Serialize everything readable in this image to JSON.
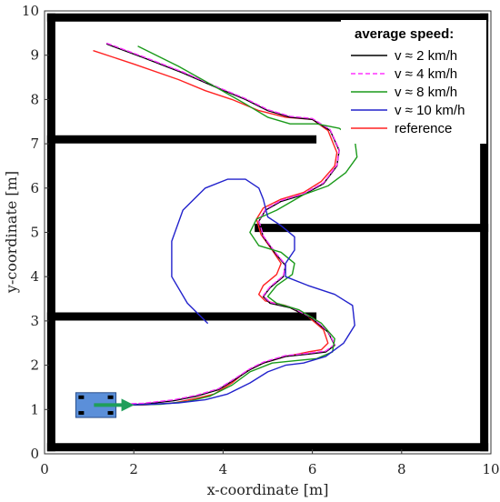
{
  "chart_data": {
    "type": "line",
    "title": "",
    "xlabel": "x-coordinate [m]",
    "ylabel": "y-coordinate [m]",
    "xlim": [
      0,
      10
    ],
    "ylim": [
      0,
      10
    ],
    "x_ticks": [
      "0",
      "2",
      "4",
      "6",
      "8",
      "10"
    ],
    "y_ticks": [
      "0",
      "1",
      "2",
      "3",
      "4",
      "5",
      "6",
      "7",
      "8",
      "9",
      "10"
    ],
    "grid": false,
    "legend": {
      "title": "average speed:",
      "position": "top-right",
      "entries": [
        {
          "label": "v ≈ 2 km/h",
          "color": "#000000",
          "dash": "solid"
        },
        {
          "label": "v ≈ 4 km/h",
          "color": "#ff33ff",
          "dash": "dashed"
        },
        {
          "label": "v ≈ 8 km/h",
          "color": "#1a9a1a",
          "dash": "solid"
        },
        {
          "label": "v ≈ 10 km/h",
          "color": "#2222cc",
          "dash": "solid"
        },
        {
          "label": "reference",
          "color": "#ff2222",
          "dash": "solid"
        }
      ]
    },
    "walls": [
      {
        "from": [
          0.15,
          0.15
        ],
        "to": [
          9.85,
          0.15
        ]
      },
      {
        "from": [
          0.15,
          9.85
        ],
        "to": [
          9.85,
          9.85
        ]
      },
      {
        "from": [
          0.15,
          0.15
        ],
        "to": [
          0.15,
          9.85
        ]
      },
      {
        "from": [
          9.85,
          0.15
        ],
        "to": [
          9.85,
          9.85
        ]
      },
      {
        "from": [
          0.15,
          7.1
        ],
        "to": [
          6.0,
          7.1
        ]
      },
      {
        "from": [
          0.15,
          3.1
        ],
        "to": [
          6.0,
          3.1
        ]
      },
      {
        "from": [
          4.8,
          5.1
        ],
        "to": [
          9.85,
          5.1
        ]
      }
    ],
    "vehicle": {
      "x": [
        0.7,
        1.6
      ],
      "y": [
        0.82,
        1.38
      ],
      "color": "#5b8fd9",
      "arrow_color": "#1f9e5a"
    },
    "series": [
      {
        "name": "reference",
        "color": "#ff2222",
        "x": [
          1.1,
          2.0,
          3.0,
          3.6,
          4.2,
          4.8,
          5.4,
          6.0,
          6.35,
          6.55,
          6.5,
          6.2,
          5.8,
          5.3,
          4.9,
          4.75,
          4.85,
          5.1,
          5.3,
          5.2,
          4.9,
          4.8,
          4.95,
          5.4,
          5.9,
          6.25,
          6.35,
          6.2,
          5.9,
          5.4,
          4.9,
          4.6,
          4.5,
          4.2,
          3.8,
          3.4,
          2.9,
          2.2,
          1.1
        ],
        "y": [
          9.1,
          8.8,
          8.45,
          8.2,
          8.0,
          7.75,
          7.6,
          7.55,
          7.3,
          6.8,
          6.5,
          6.15,
          5.9,
          5.75,
          5.55,
          5.3,
          4.95,
          4.6,
          4.3,
          4.05,
          3.8,
          3.6,
          3.45,
          3.35,
          3.1,
          2.8,
          2.5,
          2.35,
          2.3,
          2.2,
          2.05,
          1.9,
          1.85,
          1.6,
          1.35,
          1.25,
          1.15,
          1.1,
          1.1
        ]
      },
      {
        "name": "v ≈ 2 km/h",
        "color": "#000000",
        "x": [
          1.4,
          2.2,
          3.1,
          3.9,
          4.5,
          5.0,
          5.5,
          6.0,
          6.4,
          6.6,
          6.55,
          6.25,
          5.8,
          5.3,
          4.95,
          4.8,
          4.9,
          5.15,
          5.4,
          5.35,
          5.05,
          4.9,
          5.05,
          5.5,
          6.0,
          6.35,
          6.5,
          6.3,
          5.9,
          5.4,
          4.9,
          4.6,
          4.3,
          3.9,
          3.4,
          2.9,
          2.2,
          1.5
        ],
        "y": [
          9.25,
          8.95,
          8.6,
          8.25,
          8.0,
          7.75,
          7.6,
          7.55,
          7.3,
          6.85,
          6.5,
          6.1,
          5.85,
          5.7,
          5.5,
          5.25,
          4.9,
          4.55,
          4.25,
          4.0,
          3.75,
          3.55,
          3.4,
          3.3,
          3.05,
          2.75,
          2.45,
          2.3,
          2.25,
          2.2,
          2.05,
          1.9,
          1.7,
          1.45,
          1.3,
          1.2,
          1.12,
          1.1
        ]
      },
      {
        "name": "v ≈ 4 km/h",
        "color": "#ff33ff",
        "x": [
          1.4,
          2.2,
          3.1,
          3.9,
          4.5,
          5.0,
          5.5,
          6.0,
          6.4,
          6.6,
          6.55,
          6.25,
          5.8,
          5.3,
          4.95,
          4.8,
          4.9,
          5.15,
          5.4,
          5.35,
          5.05,
          4.9,
          5.05,
          5.5,
          6.0,
          6.35,
          6.5,
          6.3,
          5.9,
          5.4,
          4.9,
          4.6,
          4.3,
          3.9,
          3.4,
          2.9,
          2.2,
          1.5
        ],
        "y": [
          9.27,
          8.97,
          8.62,
          8.27,
          8.02,
          7.77,
          7.62,
          7.57,
          7.32,
          6.87,
          6.52,
          6.12,
          5.87,
          5.72,
          5.52,
          5.27,
          4.92,
          4.57,
          4.27,
          4.02,
          3.77,
          3.57,
          3.42,
          3.32,
          3.07,
          2.77,
          2.47,
          2.32,
          2.27,
          2.22,
          2.07,
          1.92,
          1.72,
          1.47,
          1.32,
          1.22,
          1.14,
          1.12
        ]
      },
      {
        "name": "v ≈ 8 km/h",
        "color": "#1a9a1a",
        "x": [
          2.1,
          3.0,
          3.8,
          4.5,
          5.0,
          5.5,
          6.1,
          6.6,
          6.95,
          7.0,
          6.75,
          6.35,
          5.8,
          5.2,
          4.75,
          4.6,
          4.8,
          5.3,
          5.6,
          5.55,
          5.2,
          5.0,
          5.2,
          5.7,
          6.2,
          6.5,
          6.45,
          6.1,
          5.6,
          5.1,
          4.6,
          4.2,
          3.7,
          3.2,
          2.6,
          1.9
        ],
        "y": [
          9.2,
          8.75,
          8.3,
          7.9,
          7.6,
          7.45,
          7.45,
          7.35,
          7.1,
          6.7,
          6.35,
          6.05,
          5.85,
          5.5,
          5.3,
          5.0,
          4.7,
          4.55,
          4.3,
          4.05,
          3.8,
          3.55,
          3.4,
          3.25,
          2.95,
          2.6,
          2.3,
          2.15,
          2.1,
          2.05,
          1.85,
          1.55,
          1.3,
          1.18,
          1.12,
          1.1
        ]
      },
      {
        "name": "v ≈ 10 km/h",
        "color": "#2222cc",
        "x": [
          3.65,
          3.2,
          2.85,
          2.85,
          3.1,
          3.6,
          4.1,
          4.5,
          4.8,
          4.9,
          5.0,
          5.3,
          5.6,
          5.6,
          5.4,
          5.4,
          5.9,
          6.5,
          6.9,
          6.95,
          6.7,
          6.3,
          5.8,
          5.4,
          5.0,
          4.6,
          4.1,
          3.6,
          3.0,
          2.4,
          1.8
        ],
        "y": [
          2.95,
          3.4,
          4.0,
          4.8,
          5.5,
          6.0,
          6.2,
          6.2,
          6.0,
          5.75,
          5.35,
          5.15,
          4.9,
          4.6,
          4.3,
          4.0,
          3.8,
          3.6,
          3.35,
          2.9,
          2.5,
          2.2,
          2.05,
          2.0,
          1.85,
          1.6,
          1.35,
          1.22,
          1.15,
          1.12,
          1.1
        ]
      }
    ]
  }
}
